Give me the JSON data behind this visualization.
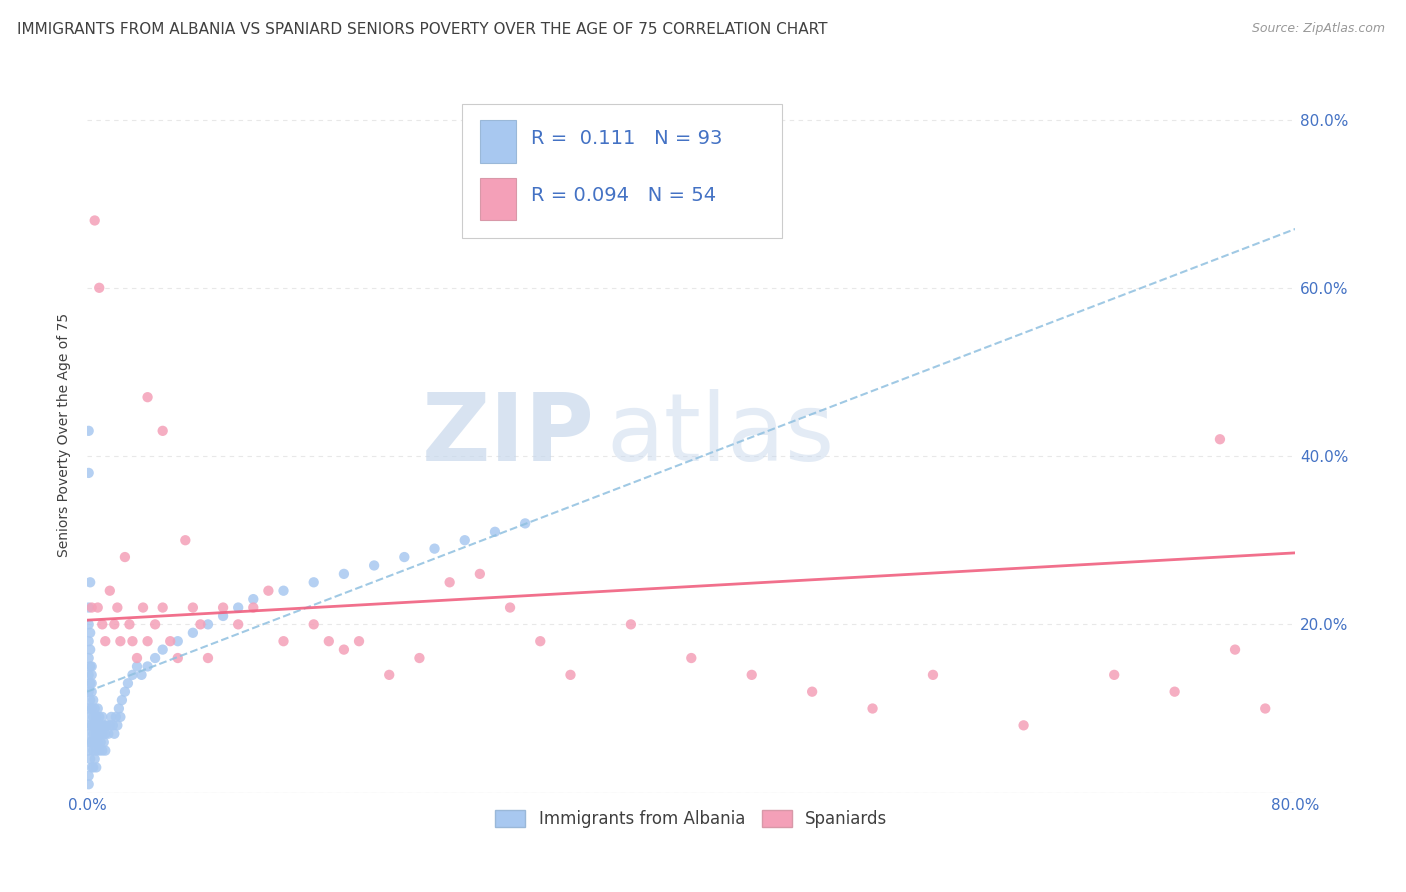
{
  "title": "IMMIGRANTS FROM ALBANIA VS SPANIARD SENIORS POVERTY OVER THE AGE OF 75 CORRELATION CHART",
  "source": "Source: ZipAtlas.com",
  "ylabel": "Seniors Poverty Over the Age of 75",
  "xlim": [
    0.0,
    0.8
  ],
  "ylim": [
    0.0,
    0.85
  ],
  "xtick_positions": [
    0.0,
    0.1,
    0.2,
    0.3,
    0.4,
    0.5,
    0.6,
    0.7,
    0.8
  ],
  "xtick_labels": [
    "0.0%",
    "",
    "",
    "",
    "",
    "",
    "",
    "",
    "80.0%"
  ],
  "ytick_positions": [
    0.0,
    0.2,
    0.4,
    0.6,
    0.8
  ],
  "ytick_labels_right": [
    "",
    "20.0%",
    "40.0%",
    "60.0%",
    "80.0%"
  ],
  "legend_R1": "0.111",
  "legend_N1": "93",
  "legend_R2": "0.094",
  "legend_N2": "54",
  "series1_label": "Immigrants from Albania",
  "series2_label": "Spaniards",
  "color1": "#a8c8f0",
  "color2": "#f4a0b8",
  "trendline1_color": "#90c0e0",
  "trendline2_color": "#f06080",
  "albania_x": [
    0.001,
    0.001,
    0.001,
    0.001,
    0.001,
    0.002,
    0.002,
    0.002,
    0.002,
    0.002,
    0.002,
    0.002,
    0.003,
    0.003,
    0.003,
    0.003,
    0.003,
    0.003,
    0.004,
    0.004,
    0.004,
    0.004,
    0.004,
    0.005,
    0.005,
    0.005,
    0.005,
    0.006,
    0.006,
    0.006,
    0.006,
    0.007,
    0.007,
    0.007,
    0.008,
    0.008,
    0.008,
    0.009,
    0.009,
    0.01,
    0.01,
    0.01,
    0.011,
    0.011,
    0.012,
    0.012,
    0.013,
    0.014,
    0.015,
    0.016,
    0.017,
    0.018,
    0.019,
    0.02,
    0.021,
    0.022,
    0.023,
    0.025,
    0.027,
    0.03,
    0.033,
    0.036,
    0.04,
    0.045,
    0.05,
    0.06,
    0.07,
    0.08,
    0.09,
    0.1,
    0.11,
    0.13,
    0.15,
    0.17,
    0.19,
    0.21,
    0.23,
    0.25,
    0.27,
    0.29,
    0.001,
    0.001,
    0.002,
    0.002,
    0.003,
    0.003,
    0.001,
    0.001,
    0.002,
    0.001,
    0.001,
    0.001,
    0.001
  ],
  "albania_y": [
    0.05,
    0.08,
    0.1,
    0.12,
    0.14,
    0.06,
    0.09,
    0.11,
    0.13,
    0.15,
    0.07,
    0.04,
    0.08,
    0.1,
    0.12,
    0.14,
    0.06,
    0.03,
    0.09,
    0.11,
    0.07,
    0.05,
    0.03,
    0.1,
    0.08,
    0.06,
    0.04,
    0.09,
    0.07,
    0.05,
    0.03,
    0.1,
    0.08,
    0.06,
    0.09,
    0.07,
    0.05,
    0.08,
    0.06,
    0.09,
    0.07,
    0.05,
    0.08,
    0.06,
    0.07,
    0.05,
    0.08,
    0.07,
    0.08,
    0.09,
    0.08,
    0.07,
    0.09,
    0.08,
    0.1,
    0.09,
    0.11,
    0.12,
    0.13,
    0.14,
    0.15,
    0.14,
    0.15,
    0.16,
    0.17,
    0.18,
    0.19,
    0.2,
    0.21,
    0.22,
    0.23,
    0.24,
    0.25,
    0.26,
    0.27,
    0.28,
    0.29,
    0.3,
    0.31,
    0.32,
    0.43,
    0.38,
    0.19,
    0.17,
    0.15,
    0.13,
    0.22,
    0.2,
    0.25,
    0.16,
    0.18,
    0.02,
    0.01
  ],
  "spaniard_x": [
    0.003,
    0.005,
    0.007,
    0.01,
    0.012,
    0.015,
    0.018,
    0.02,
    0.022,
    0.025,
    0.028,
    0.03,
    0.033,
    0.037,
    0.04,
    0.045,
    0.05,
    0.055,
    0.06,
    0.065,
    0.07,
    0.075,
    0.08,
    0.09,
    0.1,
    0.11,
    0.12,
    0.13,
    0.15,
    0.16,
    0.17,
    0.18,
    0.2,
    0.22,
    0.24,
    0.26,
    0.28,
    0.3,
    0.32,
    0.36,
    0.4,
    0.44,
    0.48,
    0.52,
    0.56,
    0.62,
    0.68,
    0.72,
    0.76,
    0.78,
    0.008,
    0.04,
    0.05,
    0.75
  ],
  "spaniard_y": [
    0.22,
    0.68,
    0.22,
    0.2,
    0.18,
    0.24,
    0.2,
    0.22,
    0.18,
    0.28,
    0.2,
    0.18,
    0.16,
    0.22,
    0.18,
    0.2,
    0.22,
    0.18,
    0.16,
    0.3,
    0.22,
    0.2,
    0.16,
    0.22,
    0.2,
    0.22,
    0.24,
    0.18,
    0.2,
    0.18,
    0.17,
    0.18,
    0.14,
    0.16,
    0.25,
    0.26,
    0.22,
    0.18,
    0.14,
    0.2,
    0.16,
    0.14,
    0.12,
    0.1,
    0.14,
    0.08,
    0.14,
    0.12,
    0.17,
    0.1,
    0.6,
    0.47,
    0.43,
    0.42
  ],
  "trendline1_x0": 0.0,
  "trendline1_y0": 0.12,
  "trendline1_x1": 0.8,
  "trendline1_y1": 0.67,
  "trendline2_x0": 0.0,
  "trendline2_y0": 0.205,
  "trendline2_x1": 0.8,
  "trendline2_y1": 0.285,
  "watermark_zip": "ZIP",
  "watermark_atlas": "atlas",
  "background_color": "#ffffff",
  "grid_color": "#e8e8e8",
  "axis_color": "#4472c4",
  "text_color": "#404040",
  "title_fontsize": 11,
  "axis_label_fontsize": 10,
  "tick_fontsize": 11,
  "legend_fontsize": 14
}
